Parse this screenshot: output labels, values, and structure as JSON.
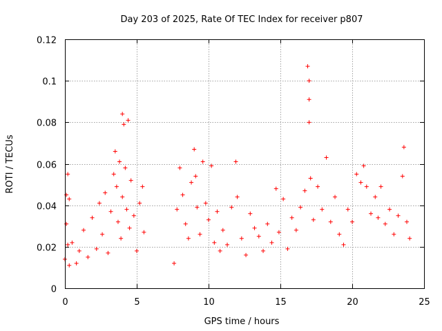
{
  "chart_data": {
    "type": "scatter",
    "title": "Day 203 of 2025, Rate Of TEC Index for receiver p807",
    "xlabel": "GPS time / hours",
    "ylabel": "ROTI / TECUs",
    "xlim": [
      0,
      25
    ],
    "ylim": [
      0,
      0.12
    ],
    "xticks": [
      0,
      5,
      10,
      15,
      20,
      25
    ],
    "xtick_labels": [
      "0",
      "5",
      "10",
      "15",
      "20",
      "25"
    ],
    "yticks": [
      0,
      0.02,
      0.04,
      0.06,
      0.08,
      0.1,
      0.12
    ],
    "ytick_labels": [
      "0",
      "0.02",
      "0.04",
      "0.06",
      "0.08",
      "0.1",
      "0.12"
    ],
    "grid": true,
    "marker": "+",
    "color": "#ff0000",
    "data_gap_hours": [
      5.6,
      7.5
    ],
    "series": [
      {
        "name": "ROTI",
        "x": [
          0.0,
          0.1,
          0.1,
          0.2,
          0.2,
          0.3,
          0.3,
          0.5,
          0.8,
          1.0,
          1.3,
          1.6,
          1.9,
          2.2,
          2.4,
          2.6,
          2.8,
          3.0,
          3.2,
          3.4,
          3.5,
          3.6,
          3.7,
          3.8,
          3.9,
          4.0,
          4.0,
          4.1,
          4.2,
          4.3,
          4.4,
          4.5,
          4.6,
          4.8,
          5.0,
          5.2,
          5.4,
          5.5,
          7.6,
          7.8,
          8.0,
          8.2,
          8.4,
          8.6,
          8.8,
          9.0,
          9.1,
          9.2,
          9.4,
          9.6,
          9.8,
          10.0,
          10.2,
          10.4,
          10.6,
          10.8,
          11.0,
          11.3,
          11.6,
          11.9,
          12.0,
          12.3,
          12.6,
          12.9,
          13.2,
          13.5,
          13.8,
          14.1,
          14.4,
          14.7,
          14.9,
          15.2,
          15.5,
          15.8,
          16.1,
          16.4,
          16.7,
          16.9,
          17.0,
          17.0,
          17.0,
          17.1,
          17.3,
          17.6,
          17.9,
          18.2,
          18.5,
          18.8,
          19.1,
          19.4,
          19.7,
          20.0,
          20.3,
          20.6,
          20.8,
          21.0,
          21.3,
          21.6,
          21.8,
          22.0,
          22.3,
          22.6,
          22.9,
          23.2,
          23.5,
          23.6,
          23.8,
          24.0
        ],
        "y": [
          0.014,
          0.045,
          0.031,
          0.055,
          0.021,
          0.043,
          0.011,
          0.022,
          0.012,
          0.018,
          0.028,
          0.015,
          0.034,
          0.019,
          0.041,
          0.026,
          0.046,
          0.017,
          0.037,
          0.055,
          0.066,
          0.049,
          0.032,
          0.061,
          0.024,
          0.084,
          0.044,
          0.079,
          0.058,
          0.038,
          0.081,
          0.029,
          0.052,
          0.035,
          0.018,
          0.041,
          0.049,
          0.027,
          0.012,
          0.038,
          0.058,
          0.045,
          0.031,
          0.024,
          0.051,
          0.067,
          0.054,
          0.039,
          0.026,
          0.061,
          0.041,
          0.033,
          0.059,
          0.022,
          0.037,
          0.018,
          0.028,
          0.021,
          0.039,
          0.061,
          0.044,
          0.024,
          0.016,
          0.036,
          0.029,
          0.025,
          0.018,
          0.031,
          0.022,
          0.048,
          0.027,
          0.043,
          0.019,
          0.034,
          0.028,
          0.039,
          0.047,
          0.107,
          0.1,
          0.091,
          0.08,
          0.053,
          0.033,
          0.049,
          0.038,
          0.063,
          0.032,
          0.044,
          0.026,
          0.021,
          0.038,
          0.032,
          0.055,
          0.051,
          0.059,
          0.049,
          0.036,
          0.044,
          0.034,
          0.049,
          0.031,
          0.038,
          0.026,
          0.035,
          0.054,
          0.068,
          0.032,
          0.024
        ]
      }
    ]
  }
}
